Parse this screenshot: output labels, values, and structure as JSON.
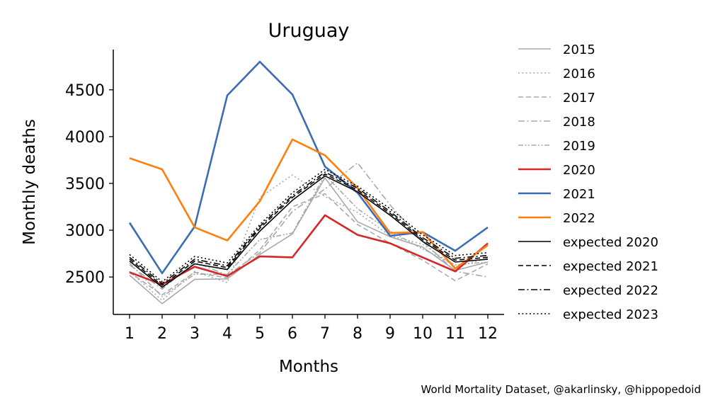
{
  "chart_data": {
    "type": "line",
    "title": "Uruguay",
    "xlabel": "Months",
    "ylabel": "Monthly deaths",
    "x": [
      1,
      2,
      3,
      4,
      5,
      6,
      7,
      8,
      9,
      10,
      11,
      12
    ],
    "xlim": [
      0.5,
      12.5
    ],
    "ylim": [
      2100,
      4930
    ],
    "yticks": [
      2500,
      3000,
      3500,
      4000,
      4500
    ],
    "grid": false,
    "legend_position": "right",
    "series": [
      {
        "name": "2015",
        "color": "#a9a9a9",
        "style": "solid",
        "width": 1.6,
        "values": [
          2520,
          2215,
          2475,
          2480,
          2740,
          2960,
          3560,
          3090,
          2930,
          2820,
          2570,
          2660
        ]
      },
      {
        "name": "2016",
        "color": "#a9a9a9",
        "style": "dotted",
        "width": 1.6,
        "values": [
          2560,
          2250,
          2560,
          2440,
          3350,
          3590,
          3360,
          3190,
          2940,
          2850,
          2610,
          2700
        ]
      },
      {
        "name": "2017",
        "color": "#a9a9a9",
        "style": "dashed",
        "width": 1.6,
        "values": [
          2550,
          2310,
          2550,
          2490,
          2790,
          3250,
          3390,
          3060,
          2860,
          2680,
          2460,
          2640
        ]
      },
      {
        "name": "2018",
        "color": "#a9a9a9",
        "style": "dashdot",
        "width": 1.6,
        "values": [
          2630,
          2370,
          2660,
          2520,
          2760,
          3200,
          3440,
          3720,
          3270,
          2880,
          2560,
          2500
        ]
      },
      {
        "name": "2019",
        "color": "#a9a9a9",
        "style": "dashdotdot",
        "width": 1.6,
        "values": [
          2650,
          2290,
          2530,
          2530,
          2900,
          2970,
          3590,
          3230,
          2990,
          2800,
          2630,
          2660
        ]
      },
      {
        "name": "2020",
        "color": "#d62728",
        "style": "solid",
        "width": 2.6,
        "values": [
          2550,
          2420,
          2610,
          2510,
          2720,
          2710,
          3160,
          2950,
          2860,
          2710,
          2560,
          2860
        ]
      },
      {
        "name": "2021",
        "color": "#3a6db3",
        "style": "solid",
        "width": 2.6,
        "values": [
          3080,
          2540,
          3040,
          4440,
          4800,
          4450,
          3680,
          3400,
          2940,
          2980,
          2780,
          3030
        ]
      },
      {
        "name": "2022",
        "color": "#ff7f0e",
        "style": "solid",
        "width": 2.6,
        "values": [
          3770,
          3650,
          3030,
          2890,
          3310,
          3970,
          3800,
          3450,
          2970,
          2980,
          2590,
          2840
        ]
      },
      {
        "name": "expected 2020",
        "color": "#000000",
        "style": "solid",
        "width": 1.6,
        "values": [
          2670,
          2390,
          2640,
          2580,
          2990,
          3320,
          3580,
          3410,
          3160,
          2880,
          2660,
          2690
        ]
      },
      {
        "name": "expected 2021",
        "color": "#000000",
        "style": "dashed",
        "width": 1.6,
        "values": [
          2690,
          2410,
          2670,
          2600,
          3020,
          3350,
          3600,
          3430,
          3180,
          2900,
          2680,
          2710
        ]
      },
      {
        "name": "expected 2022",
        "color": "#000000",
        "style": "dashdot",
        "width": 1.6,
        "values": [
          2710,
          2430,
          2690,
          2620,
          3040,
          3370,
          3620,
          3450,
          3200,
          2920,
          2700,
          2730
        ]
      },
      {
        "name": "expected 2023",
        "color": "#000000",
        "style": "dotted",
        "width": 1.6,
        "values": [
          2740,
          2450,
          2720,
          2650,
          3060,
          3400,
          3650,
          3470,
          3230,
          2950,
          2730,
          2760
        ]
      }
    ],
    "credit": "World Mortality Dataset, @akarlinsky, @hippopedoid"
  }
}
